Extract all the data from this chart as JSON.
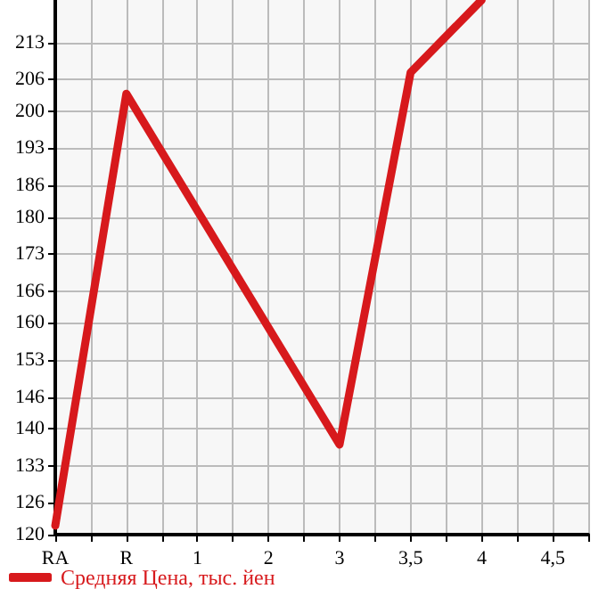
{
  "chart_data": {
    "type": "line",
    "categories": [
      "RA",
      "R",
      "1",
      "2",
      "3",
      "3,5",
      "4",
      "4,5"
    ],
    "series": [
      {
        "name": "Средняя Цена, тыс. йен",
        "color": "#d7191c",
        "values": [
          121.7,
          203.3,
          null,
          null,
          137,
          207.3,
          221,
          null
        ]
      }
    ],
    "ylim": [
      120,
      221
    ],
    "yticks": [
      120,
      126,
      133,
      140,
      146,
      153,
      160,
      166,
      173,
      180,
      186,
      193,
      200,
      206,
      213
    ],
    "grid": true,
    "legend": "bottom left",
    "marker": "none",
    "line_style": "solid"
  }
}
